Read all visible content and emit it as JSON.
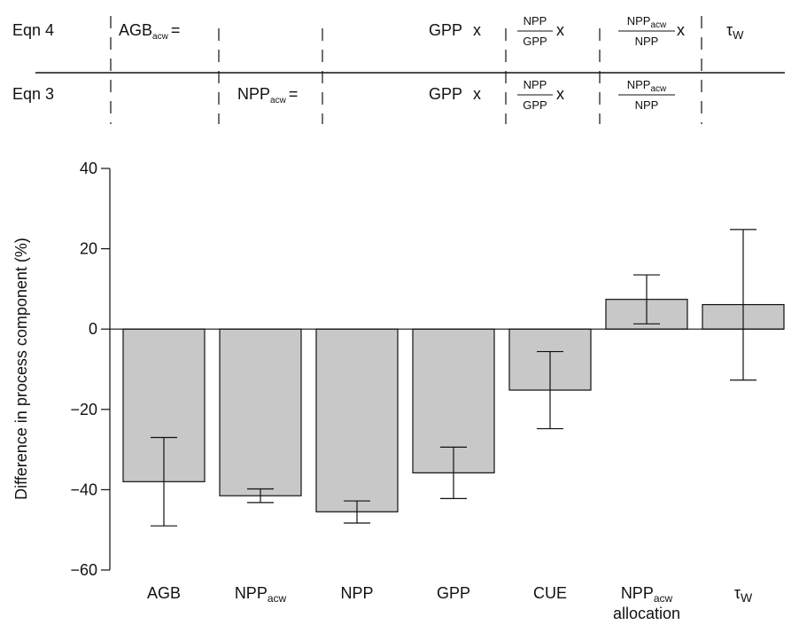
{
  "equations": {
    "eqn4": {
      "label": "Eqn 4",
      "lhs_main": "AGB",
      "lhs_sub": "acw",
      "lhs_eq": "=",
      "gpp": "GPP",
      "times": "x",
      "cue_num": "NPP",
      "cue_den": "GPP",
      "alloc_num": "NPP",
      "alloc_num_sub": "acw",
      "alloc_den": "NPP",
      "tau": "τ",
      "tau_sub": "W"
    },
    "eqn3": {
      "label": "Eqn 3",
      "lhs_main": "NPP",
      "lhs_sub": "acw",
      "lhs_eq": "=",
      "gpp": "GPP",
      "times": "x",
      "cue_num": "NPP",
      "cue_den": "GPP",
      "alloc_num": "NPP",
      "alloc_num_sub": "acw",
      "alloc_den": "NPP"
    }
  },
  "chart_data": {
    "type": "bar",
    "ylabel": "Difference in process component (%)",
    "ylim": [
      -60,
      40
    ],
    "yticks": [
      40,
      20,
      0,
      -20,
      -40,
      -60
    ],
    "ytick_labels": [
      "40",
      "20",
      "0",
      "−20",
      "−40",
      "−60"
    ],
    "categories": [
      {
        "main": "AGB",
        "sub": "",
        "line2": ""
      },
      {
        "main": "NPP",
        "sub": "acw",
        "line2": ""
      },
      {
        "main": "NPP",
        "sub": "",
        "line2": ""
      },
      {
        "main": "GPP",
        "sub": "",
        "line2": ""
      },
      {
        "main": "CUE",
        "sub": "",
        "line2": ""
      },
      {
        "main": "NPP",
        "sub": "acw",
        "line2": "allocation"
      },
      {
        "main": "τ",
        "sub": "W",
        "line2": ""
      }
    ],
    "values": [
      -38,
      -41.5,
      -45.5,
      -35.8,
      -15.2,
      7.4,
      6.1
    ],
    "error_low": [
      -49,
      -43.2,
      -48.3,
      -42.2,
      -24.8,
      1.3,
      -12.7
    ],
    "error_high": [
      -27,
      -39.8,
      -42.8,
      -29.4,
      -5.6,
      13.5,
      24.8
    ],
    "bar_color": "#c8c8c8",
    "grid": false
  }
}
